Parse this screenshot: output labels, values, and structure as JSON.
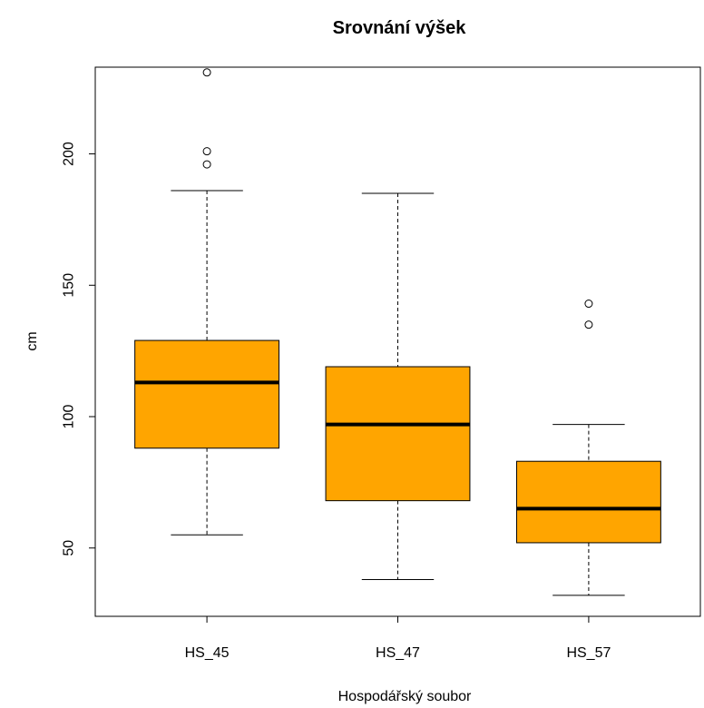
{
  "chart_data": {
    "type": "boxplot",
    "title": "Srovnání výšek",
    "xlabel": "Hospodářský soubor",
    "ylabel": "cm",
    "ylim": [
      24,
      233
    ],
    "y_ticks": [
      "50",
      "100",
      "150",
      "200"
    ],
    "grid": false,
    "box_color": "#FFA500",
    "groups": [
      {
        "label": "HS_45",
        "whisker_low": 55,
        "q1": 88,
        "median": 113,
        "q3": 129,
        "whisker_high": 186,
        "outliers": [
          196,
          201,
          231
        ]
      },
      {
        "label": "HS_47",
        "whisker_low": 38,
        "q1": 68,
        "median": 97,
        "q3": 119,
        "whisker_high": 185,
        "outliers": []
      },
      {
        "label": "HS_57",
        "whisker_low": 32,
        "q1": 52,
        "median": 65,
        "q3": 83,
        "whisker_high": 97,
        "outliers": [
          135,
          143
        ]
      }
    ]
  }
}
